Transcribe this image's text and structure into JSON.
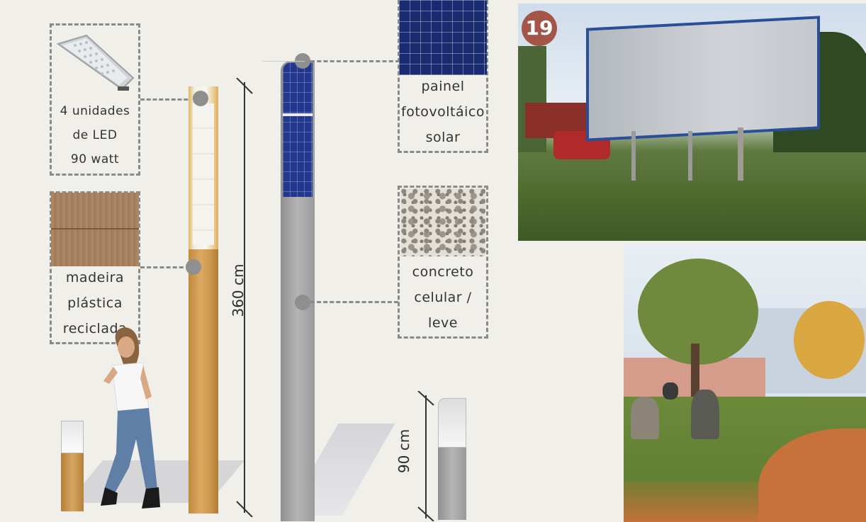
{
  "labels": {
    "led": [
      "4 unidades",
      "de LED",
      "90 watt"
    ],
    "wood": [
      "madeira",
      "plástica",
      "reciclada"
    ],
    "solar": [
      "painel",
      "fotovoltáico",
      "solar"
    ],
    "concrete": [
      "concreto",
      "celular /",
      "leve"
    ]
  },
  "dimensions": {
    "tall": "360 cm",
    "short": "90 cm"
  },
  "photo_badge": "19",
  "colors": {
    "background": "#f1efea",
    "dash": "#8a8a8a",
    "badge": "#a45548",
    "wood": "#c89a52",
    "concrete": "#9e9e9e",
    "solar": "#1d2f7a"
  }
}
